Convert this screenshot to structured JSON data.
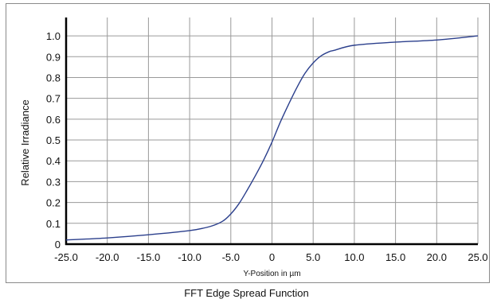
{
  "caption": "FFT Edge Spread Function",
  "chart_data": {
    "type": "line",
    "title": "",
    "xlabel": "Y-Position in µm",
    "ylabel": "Relative Irradiance",
    "xlim": [
      -25,
      25
    ],
    "ylim": [
      0,
      1.05
    ],
    "grid": true,
    "x_ticks": [
      "-25.0",
      "-20.0",
      "-15.0",
      "-10.0",
      "-5.0",
      "0",
      "5.0",
      "10.0",
      "15.0",
      "20.0",
      "25.0"
    ],
    "y_ticks": [
      "0",
      "0.1",
      "0.2",
      "0.3",
      "0.4",
      "0.5",
      "0.6",
      "0.7",
      "0.8",
      "0.9",
      "1.0"
    ],
    "line_color": "#2b3f8c",
    "series": [
      {
        "x": [
          -25,
          -20,
          -15,
          -10,
          -7.5,
          -6,
          -5,
          -4,
          -3,
          -2,
          -1,
          0,
          1,
          2,
          3,
          4,
          5,
          6,
          7,
          7.5,
          10,
          15,
          20,
          25
        ],
        "y": [
          0.02,
          0.03,
          0.045,
          0.065,
          0.085,
          0.11,
          0.145,
          0.195,
          0.26,
          0.33,
          0.405,
          0.49,
          0.585,
          0.67,
          0.75,
          0.82,
          0.87,
          0.905,
          0.925,
          0.93,
          0.955,
          0.97,
          0.98,
          1.0
        ]
      }
    ]
  }
}
